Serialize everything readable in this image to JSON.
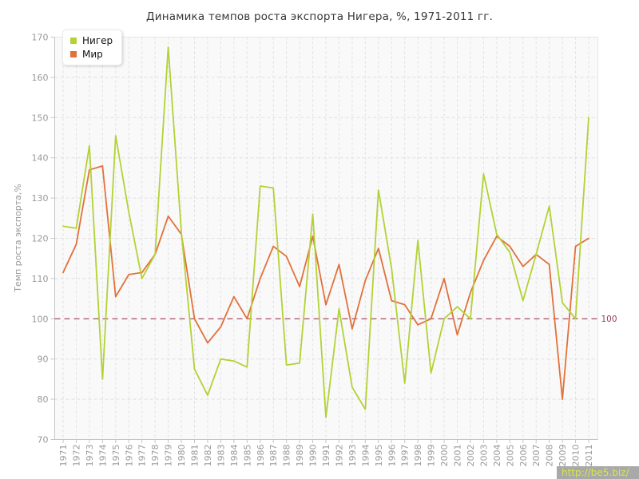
{
  "title": "Динамика темпов роста экспорта Нигера, %, 1971-2011 гг.",
  "watermark": {
    "text": "http://be5.biz/"
  },
  "chart_data": {
    "type": "line",
    "title": "Динамика темпов роста экспорта Нигера, %, 1971-2011 гг.",
    "xlabel": "",
    "ylabel": "Темп роста экспорта,%",
    "ylim": [
      70,
      170
    ],
    "ytick_step": 10,
    "grid": true,
    "grid_style": "dashed",
    "legend_position": "top-left",
    "reference_line": {
      "value": 100,
      "label": "100",
      "color": "#993a4f"
    },
    "categories": [
      1971,
      1972,
      1973,
      1974,
      1975,
      1976,
      1977,
      1978,
      1979,
      1980,
      1981,
      1982,
      1983,
      1984,
      1985,
      1986,
      1987,
      1988,
      1989,
      1990,
      1991,
      1992,
      1993,
      1994,
      1995,
      1996,
      1997,
      1998,
      1999,
      2000,
      2001,
      2002,
      2003,
      2004,
      2005,
      2006,
      2007,
      2008,
      2009,
      2010,
      2011
    ],
    "series": [
      {
        "name": "Нигер",
        "color": "#b2d235",
        "values": [
          123,
          122.5,
          143,
          85,
          145.5,
          126.5,
          110,
          116,
          167.5,
          121.5,
          87.5,
          81,
          90,
          89.5,
          88,
          133,
          132.5,
          88.5,
          89,
          126,
          75.5,
          102.5,
          83,
          77.5,
          132,
          112.5,
          84,
          119.5,
          86.5,
          100,
          103,
          100,
          136,
          121,
          116.5,
          104.5,
          116,
          128,
          104,
          100,
          150
        ]
      },
      {
        "name": "Мир",
        "color": "#e2713a",
        "values": [
          111.5,
          118.5,
          137,
          138,
          105.5,
          111,
          111.5,
          116,
          125.5,
          121,
          100,
          94,
          98,
          105.5,
          100,
          110,
          118,
          115.5,
          108,
          120.5,
          103.5,
          113.5,
          97.5,
          109.5,
          117.5,
          104.5,
          103.5,
          98.5,
          100,
          110,
          96,
          106.5,
          114.5,
          120.5,
          118,
          113,
          116,
          113.5,
          80,
          118,
          120
        ]
      }
    ],
    "colors": {
      "plot_background": "#f9f9f9",
      "gridline": "#e0e0e0",
      "axis": "#c4c4c4",
      "tick_label": "#999999",
      "title_text": "#373737",
      "watermark_bg": "#a9a9a9",
      "watermark_text": "#d7e44c"
    }
  }
}
